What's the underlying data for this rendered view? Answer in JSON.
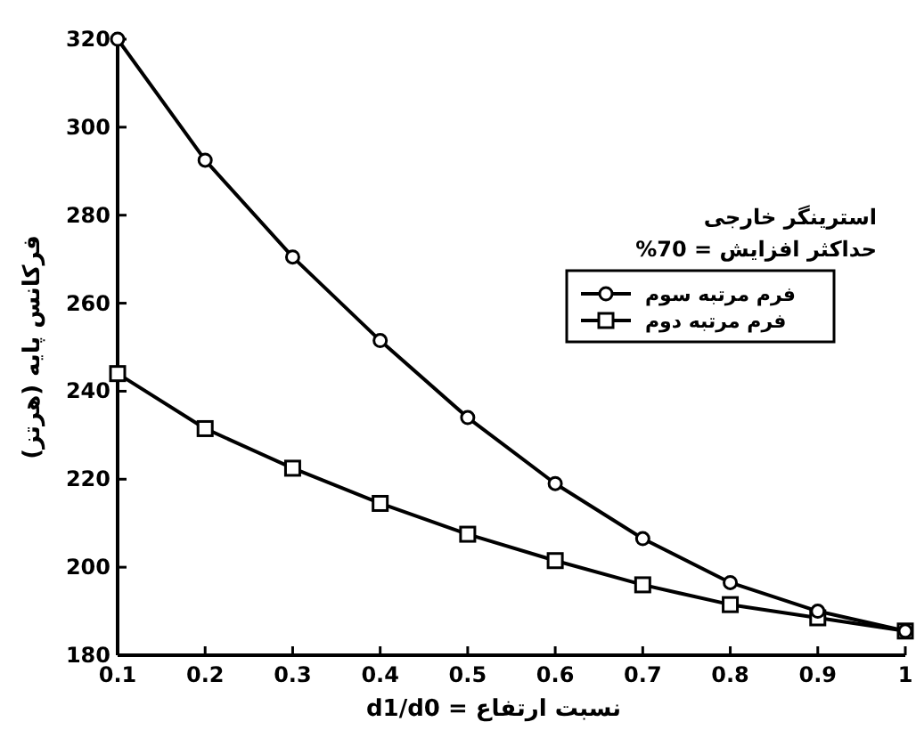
{
  "chart_data": {
    "type": "line",
    "xlabel": "نسبت ارتفاع = d1/d0",
    "ylabel": "فرکانس پایه (هرتز)",
    "legend_title": "استرینگر خارجی",
    "annotations": [
      "حداکثر افزایش = 70%"
    ],
    "x": [
      0.1,
      0.2,
      0.3,
      0.4,
      0.5,
      0.6,
      0.7,
      0.8,
      0.9,
      1
    ],
    "series": [
      {
        "name": "فرم مرتبه سوم",
        "color": "#000000",
        "marker": "circle",
        "values": [
          320,
          292.5,
          270.5,
          251.5,
          234,
          219,
          206.5,
          196.5,
          190,
          185.5
        ]
      },
      {
        "name": "فرم مرتبه دوم",
        "color": "#000000",
        "marker": "square",
        "values": [
          244,
          231.5,
          222.5,
          214.5,
          207.5,
          201.5,
          196,
          191.5,
          188.5,
          185.5
        ]
      }
    ],
    "xlim": [
      0.1,
      1
    ],
    "xticks": [
      0.1,
      0.2,
      0.3,
      0.4,
      0.5,
      0.6,
      0.7,
      0.8,
      0.9,
      1
    ],
    "ylim": [
      180,
      320
    ],
    "yticks": [
      180,
      200,
      220,
      240,
      260,
      280,
      300,
      320
    ],
    "grid": false,
    "legend": "top right",
    "line_style": "solid"
  }
}
